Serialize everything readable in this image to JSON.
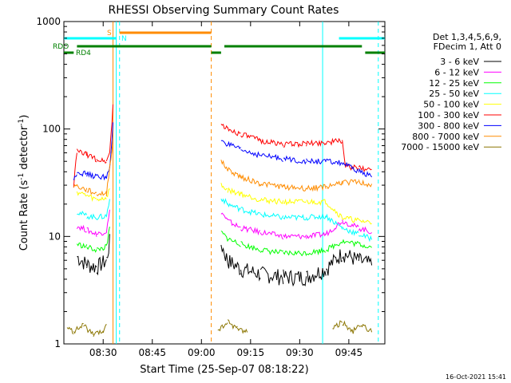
{
  "chart_data": {
    "type": "line",
    "title": "RHESSI Observing Summary Count Rates",
    "xlabel": "Start Time (25-Sep-07 08:18:22)",
    "ylabel_main": "Count Rate (s",
    "ylabel_sup1": "-1",
    "ylabel_mid": " detector",
    "ylabel_sup2": "-1",
    "ylabel_end": ")",
    "yscale": "log",
    "xlim": [
      "08:18",
      "09:56"
    ],
    "ylim": [
      1,
      1000
    ],
    "x_ticks": [
      "08:30",
      "08:45",
      "09:00",
      "09:15",
      "09:30",
      "09:45"
    ],
    "y_ticks": [
      "1",
      "10",
      "100",
      "1000"
    ],
    "timestamp": "16-Oct-2021 15:41",
    "legend_header": [
      "Det 1,3,4,5,6,9,",
      "FDecim 1, Att 0"
    ],
    "series": [
      {
        "name": "3 - 6 keV",
        "color": "#000000",
        "points": [
          [
            "08:22",
            6.5
          ],
          [
            "08:25",
            5.5
          ],
          [
            "08:28",
            5.2
          ],
          [
            "08:31",
            6.0
          ],
          [
            "08:32",
            9
          ],
          [
            "09:06",
            8.5
          ],
          [
            "09:08",
            6
          ],
          [
            "09:12",
            5
          ],
          [
            "09:18",
            4.5
          ],
          [
            "09:25",
            4.2
          ],
          [
            "09:32",
            4.2
          ],
          [
            "09:38",
            5
          ],
          [
            "09:43",
            7
          ],
          [
            "09:48",
            6
          ],
          [
            "09:52",
            5.5
          ]
        ]
      },
      {
        "name": "6 - 12 keV",
        "color": "#ff00ff",
        "points": [
          [
            "08:22",
            12.5
          ],
          [
            "08:25",
            11.5
          ],
          [
            "08:28",
            10.5
          ],
          [
            "08:31",
            11.2
          ],
          [
            "08:32",
            17
          ],
          [
            "09:06",
            17
          ],
          [
            "09:08",
            14
          ],
          [
            "09:12",
            12
          ],
          [
            "09:18",
            11
          ],
          [
            "09:25",
            10
          ],
          [
            "09:32",
            10
          ],
          [
            "09:38",
            10.5
          ],
          [
            "09:43",
            14
          ],
          [
            "09:48",
            12
          ],
          [
            "09:52",
            11
          ]
        ]
      },
      {
        "name": "12 - 25 keV",
        "color": "#00ff00",
        "points": [
          [
            "08:22",
            8.5
          ],
          [
            "08:25",
            8
          ],
          [
            "08:28",
            7.5
          ],
          [
            "08:31",
            8
          ],
          [
            "08:32",
            12
          ],
          [
            "09:06",
            11
          ],
          [
            "09:08",
            9.5
          ],
          [
            "09:12",
            8.5
          ],
          [
            "09:18",
            7.5
          ],
          [
            "09:25",
            7
          ],
          [
            "09:32",
            7
          ],
          [
            "09:38",
            7.5
          ],
          [
            "09:43",
            9
          ],
          [
            "09:48",
            8.5
          ],
          [
            "09:52",
            8
          ]
        ]
      },
      {
        "name": "25 - 50 keV",
        "color": "#00ffff",
        "points": [
          [
            "08:22",
            17
          ],
          [
            "08:25",
            15.5
          ],
          [
            "08:28",
            15
          ],
          [
            "08:31",
            15.5
          ],
          [
            "08:32",
            22
          ],
          [
            "09:06",
            23
          ],
          [
            "09:08",
            20
          ],
          [
            "09:12",
            18
          ],
          [
            "09:18",
            16
          ],
          [
            "09:25",
            15
          ],
          [
            "09:32",
            15
          ],
          [
            "09:38",
            15.5
          ],
          [
            "09:43",
            12
          ],
          [
            "09:48",
            10.5
          ],
          [
            "09:52",
            9.5
          ]
        ]
      },
      {
        "name": "50 - 100 keV",
        "color": "#ffff00",
        "points": [
          [
            "08:22",
            26
          ],
          [
            "08:25",
            24
          ],
          [
            "08:28",
            22
          ],
          [
            "08:31",
            23
          ],
          [
            "08:32",
            28
          ],
          [
            "09:06",
            30
          ],
          [
            "09:08",
            27
          ],
          [
            "09:12",
            25
          ],
          [
            "09:18",
            22
          ],
          [
            "09:25",
            21
          ],
          [
            "09:32",
            21
          ],
          [
            "09:38",
            21
          ],
          [
            "09:43",
            15
          ],
          [
            "09:48",
            14
          ],
          [
            "09:52",
            13.5
          ]
        ]
      },
      {
        "name": "100 - 300 keV",
        "color": "#ff0000",
        "points": [
          [
            "08:21",
            30
          ],
          [
            "08:22",
            62
          ],
          [
            "08:25",
            58
          ],
          [
            "08:28",
            52
          ],
          [
            "08:31",
            50
          ],
          [
            "08:32",
            60
          ],
          [
            "08:33",
            170
          ],
          [
            "09:06",
            110
          ],
          [
            "09:08",
            100
          ],
          [
            "09:12",
            90
          ],
          [
            "09:18",
            78
          ],
          [
            "09:25",
            72
          ],
          [
            "09:32",
            73
          ],
          [
            "09:38",
            75
          ],
          [
            "09:43",
            78
          ],
          [
            "09:44",
            45
          ],
          [
            "09:48",
            43
          ],
          [
            "09:52",
            42
          ]
        ]
      },
      {
        "name": "300 - 800 keV",
        "color": "#0000ff",
        "points": [
          [
            "08:21",
            33
          ],
          [
            "08:22",
            40
          ],
          [
            "08:25",
            38
          ],
          [
            "08:28",
            36
          ],
          [
            "08:31",
            36
          ],
          [
            "08:32",
            42
          ],
          [
            "08:33",
            110
          ],
          [
            "09:06",
            80
          ],
          [
            "09:08",
            72
          ],
          [
            "09:12",
            64
          ],
          [
            "09:18",
            57
          ],
          [
            "09:25",
            53
          ],
          [
            "09:32",
            50
          ],
          [
            "09:38",
            50
          ],
          [
            "09:43",
            48
          ],
          [
            "09:48",
            40
          ],
          [
            "09:52",
            37
          ]
        ]
      },
      {
        "name": "800 - 7000 keV",
        "color": "#ff8c00",
        "points": [
          [
            "08:21",
            30
          ],
          [
            "08:25",
            27
          ],
          [
            "08:28",
            25
          ],
          [
            "08:31",
            25
          ],
          [
            "08:33",
            80
          ],
          [
            "09:06",
            50
          ],
          [
            "09:08",
            42
          ],
          [
            "09:12",
            36
          ],
          [
            "09:18",
            31
          ],
          [
            "09:25",
            29
          ],
          [
            "09:32",
            28
          ],
          [
            "09:38",
            29
          ],
          [
            "09:43",
            32
          ],
          [
            "09:48",
            32
          ],
          [
            "09:52",
            30
          ]
        ]
      },
      {
        "name": "7000 - 15000 keV",
        "color": "#8b7500",
        "points": [
          [
            "08:19",
            1.4
          ],
          [
            "08:21",
            1.3
          ],
          [
            "08:24",
            1.5
          ],
          [
            "08:27",
            1.2
          ],
          [
            "08:30",
            1.3
          ],
          [
            "08:31",
            1.6
          ],
          [
            "09:05",
            1.3
          ],
          [
            "09:08",
            1.6
          ],
          [
            "09:11",
            1.4
          ],
          [
            "09:14",
            1.3
          ],
          [
            "09:40",
            1.4
          ],
          [
            "09:43",
            1.6
          ],
          [
            "09:46",
            1.3
          ],
          [
            "09:49",
            1.5
          ],
          [
            "09:52",
            1.3
          ]
        ]
      }
    ],
    "flag_bars": [
      {
        "name": "S",
        "color": "#ff8c00",
        "segments": [
          [
            "08:35",
            "09:03"
          ]
        ]
      },
      {
        "name": "N",
        "color": "#00ffff",
        "segments": [
          [
            "08:18",
            "08:34"
          ],
          [
            "09:42",
            "09:56"
          ]
        ]
      },
      {
        "name": "RDO",
        "color": "#008000",
        "segments": [
          [
            "08:22",
            "09:03"
          ],
          [
            "09:07",
            "09:49"
          ]
        ]
      },
      {
        "name": "RD4",
        "color": "#008000",
        "segments": [
          [
            "08:18",
            "08:21"
          ],
          [
            "09:03",
            "09:06"
          ],
          [
            "09:50",
            "09:56"
          ]
        ]
      }
    ],
    "vlines": [
      {
        "x": "08:34",
        "color": "#00ffff",
        "dash": false
      },
      {
        "x": "08:35",
        "color": "#00ffff",
        "dash": true
      },
      {
        "x": "08:33",
        "color": "#ff8c00",
        "dash": false
      },
      {
        "x": "09:03",
        "color": "#ff8c00",
        "dash": true
      },
      {
        "x": "09:37",
        "color": "#00ffff",
        "dash": false
      },
      {
        "x": "09:54",
        "color": "#00ffff",
        "dash": true
      }
    ]
  }
}
